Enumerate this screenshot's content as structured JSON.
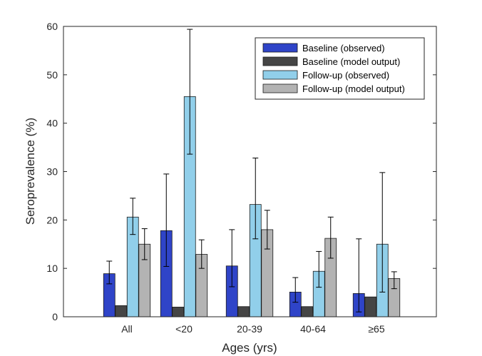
{
  "chart_data": {
    "type": "bar",
    "title": "",
    "xlabel": "Ages (yrs)",
    "ylabel": "Seroprevalence (%)",
    "ylim": [
      0,
      60
    ],
    "yticks": [
      "0",
      "10",
      "20",
      "30",
      "40",
      "50",
      "60"
    ],
    "categories": [
      "All",
      "<20",
      "20-39",
      "40-64",
      "≥65"
    ],
    "grid": false,
    "legend_position": "top-right",
    "series": [
      {
        "name": "Baseline (observed)",
        "color": "#2f44c8",
        "values": [
          8.9,
          17.8,
          10.5,
          5.1,
          4.8
        ],
        "err_low": [
          6.8,
          10.4,
          6.2,
          3.0,
          1.0
        ],
        "err_high": [
          11.5,
          29.5,
          18.0,
          8.1,
          16.1
        ]
      },
      {
        "name": "Baseline (model output)",
        "color": "#454545",
        "values": [
          2.3,
          2.0,
          2.1,
          2.1,
          4.1
        ],
        "err_low": [
          null,
          null,
          null,
          null,
          null
        ],
        "err_high": [
          null,
          null,
          null,
          null,
          null
        ]
      },
      {
        "name": "Follow-up (observed)",
        "color": "#91cfea",
        "values": [
          20.6,
          45.5,
          23.2,
          9.4,
          15.0
        ],
        "err_low": [
          17.0,
          33.6,
          16.1,
          6.1,
          5.1
        ],
        "err_high": [
          24.5,
          59.4,
          32.8,
          13.5,
          29.8
        ]
      },
      {
        "name": "Follow-up (model output)",
        "color": "#b3b3b3",
        "values": [
          15.0,
          12.9,
          18.0,
          16.2,
          7.9
        ],
        "err_low": [
          11.8,
          10.0,
          14.0,
          12.1,
          5.8
        ],
        "err_high": [
          18.2,
          15.9,
          22.0,
          20.6,
          9.3
        ]
      }
    ]
  }
}
